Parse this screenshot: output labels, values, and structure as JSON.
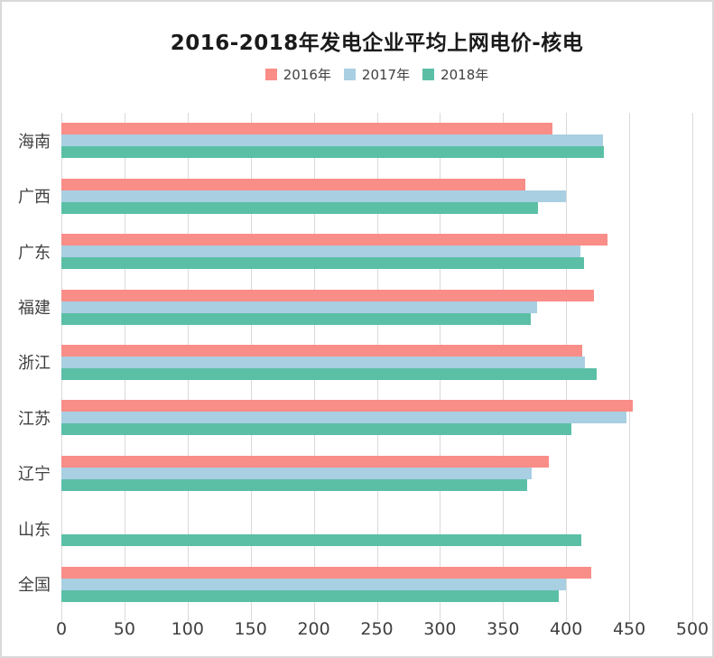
{
  "chart_data": {
    "type": "bar",
    "orientation": "horizontal",
    "title": "2016-2018年发电企业平均上网电价-核电",
    "categories": [
      "海南",
      "广西",
      "广东",
      "福建",
      "浙江",
      "江苏",
      "辽宁",
      "山东",
      "全国"
    ],
    "series": [
      {
        "name": "2016年",
        "color": "#f98d88",
        "values": [
          389,
          368,
          433,
          422,
          413,
          453,
          386,
          null,
          420
        ]
      },
      {
        "name": "2017年",
        "color": "#a9cfe2",
        "values": [
          429,
          400,
          411,
          377,
          415,
          448,
          373,
          null,
          400
        ]
      },
      {
        "name": "2018年",
        "color": "#5bbfa6",
        "values": [
          430,
          378,
          414,
          372,
          424,
          404,
          369,
          412,
          394
        ]
      }
    ],
    "xlim": [
      0,
      500
    ],
    "ticks": [
      0,
      50,
      100,
      150,
      200,
      250,
      300,
      350,
      400,
      450,
      500
    ],
    "grid": "vertical-only",
    "legend_position": "top",
    "gridline_color": "#d9d9d9",
    "text_color": "#404040",
    "title_color": "#1a1a1a"
  }
}
